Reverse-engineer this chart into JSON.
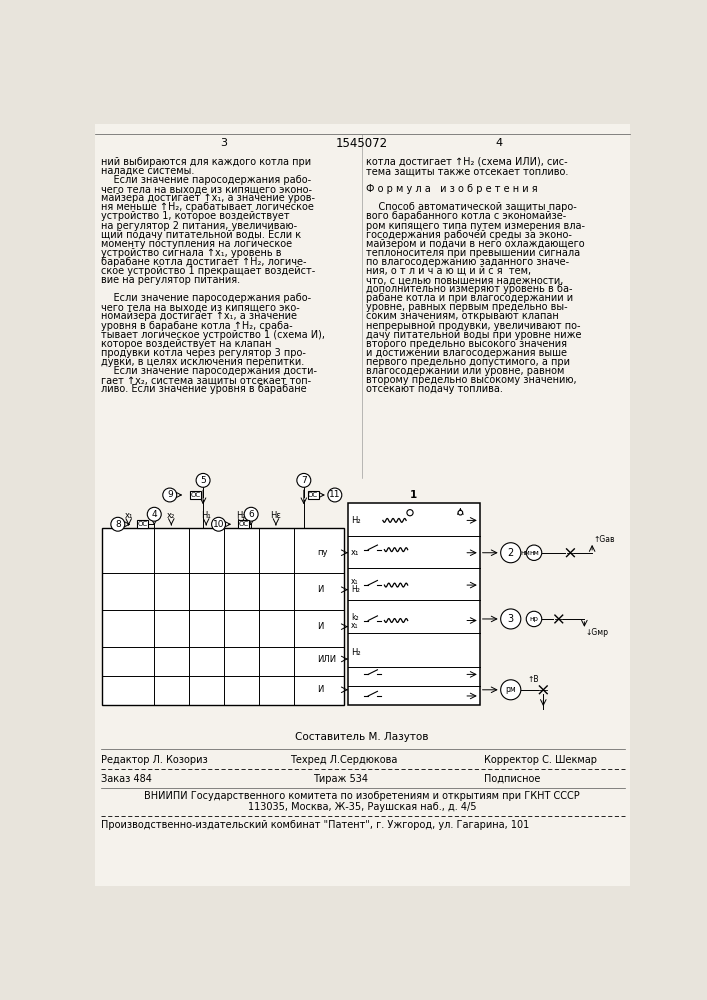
{
  "bg_color": "#e8e4dc",
  "page_color": "#f5f2ec",
  "title_top_left": "3",
  "title_center": "1545072",
  "title_top_right": "4",
  "col1_text": [
    "ний выбираются для каждого котла при",
    "наладке системы.",
    "    Если значение паросодержания рабо-",
    "чего тела на выходе из кипящего эконо-",
    "майзера достигает ↑x₁, а значение уров-",
    "ня меньше ↑H₂, срабатывает логическое",
    "устройство 1, которое воздействует",
    "на регулятор 2 питания, увеличиваю-",
    "щий подачу питательной воды. Если к",
    "моменту поступления на логическое",
    "устройство сигнала ↑x₁, уровень в",
    "барабане котла достигает ↑H₂, логиче-",
    "ское устройство 1 прекращает воздейст-",
    "вие на регулятор питания.",
    "",
    "    Если значение паросодержания рабо-",
    "чего тела на выходе из кипящего эко-",
    "номайзера достигает ↑x₁, а значение",
    "уровня в барабане котла ↑H₂, сраба-",
    "тывает логическое устройство 1 (схема И),",
    "которое воздействует на клапан",
    "продувки котла через регулятор 3 про-",
    "дувки, в целях исключения перепитки.",
    "    Если значение паросодержания дости-",
    "гает ↑x₂, система защиты отсекает топ-",
    "ливо. Если значение уровня в барабане"
  ],
  "col2_text": [
    "котла достигает ↑H₂ (схема ИЛИ), сис-",
    "тема защиты также отсекает топливо.",
    "",
    "Ф о р м у л а   и з о б р е т е н и я",
    "",
    "    Способ автоматической защиты паро-",
    "вого барабанного котла с экономайзе-",
    "ром кипящего типа путем измерения вла-",
    "госодержания рабочей среды за эконо-",
    "майзером и подачи в него охлаждающего",
    "теплоносителя при превышении сигнала",
    "по влагосодержанию заданного значе-",
    "ния, о т л и ч а ю щ и й с я  тем,",
    "что, с целью повышения надежности,",
    "дополнительно измеряют уровень в ба-",
    "рабане котла и при влагосодержании и",
    "уровне, равных первым предельно вы-",
    "соким значениям, открывают клапан",
    "непрерывной продувки, увеличивают по-",
    "дачу питательной воды при уровне ниже",
    "второго предельно высокого значения",
    "и достижении влагосодержания выше",
    "первого предельно допустимого, а при",
    "влагосодержании или уровне, равном",
    "второму предельно высокому значению,",
    "отсекают подачу топлива."
  ],
  "footer_compiler": "Составитель М. Лазутов",
  "footer_editor": "Редактор Л. Козориз",
  "footer_techred": "Техред Л.Сердюкова",
  "footer_corrector": "Корректор С. Шекмар",
  "footer_order": "Заказ 484",
  "footer_print": "Тираж 534",
  "footer_signed": "Подписное",
  "footer_vniip1": "ВНИИПИ Государственного комитета по изобретениям и открытиям при ГКНТ СССР",
  "footer_vniip2": "113035, Москва, Ж-35, Раушская наб., д. 4/5",
  "footer_prod": "Производственно-издательский комбинат \"Патент\", г. Ужгород, ул. Гагарина, 101"
}
